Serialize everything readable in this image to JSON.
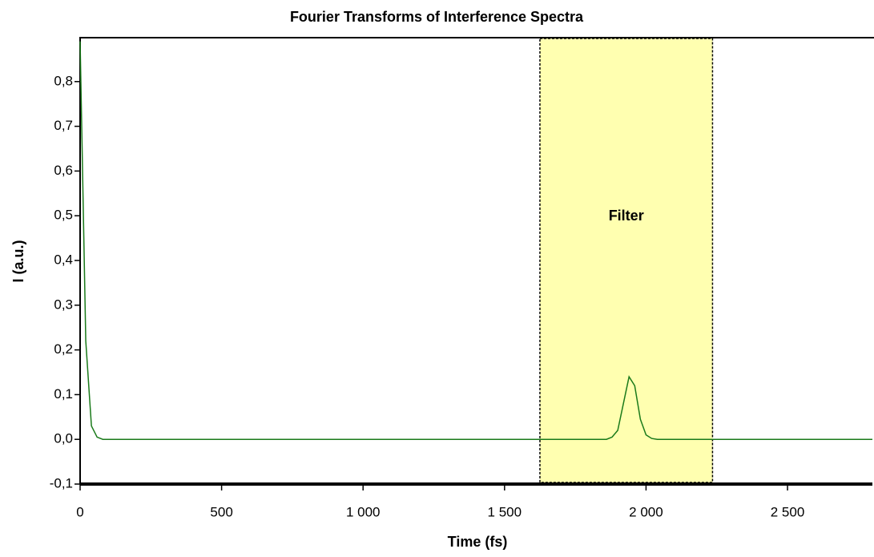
{
  "chart_data": {
    "type": "line",
    "title": "Fourier Transforms of Interference Spectra",
    "xlabel": "Time (fs)",
    "ylabel": "I (a.u.)",
    "xlim": [
      0,
      2800
    ],
    "ylim": [
      -0.1,
      0.9
    ],
    "xticks": [
      0,
      500,
      {
        "value": 1000,
        "label": "1 000"
      },
      {
        "value": 1500,
        "label": "1 500"
      },
      {
        "value": 2000,
        "label": "2 000"
      },
      {
        "value": 2500,
        "label": "2 500"
      }
    ],
    "yticks": [
      {
        "value": -0.1,
        "label": "-0,1"
      },
      {
        "value": 0,
        "label": "0,0"
      },
      {
        "value": 0.1,
        "label": "0,1"
      },
      {
        "value": 0.2,
        "label": "0,2"
      },
      {
        "value": 0.3,
        "label": "0,3"
      },
      {
        "value": 0.4,
        "label": "0,4"
      },
      {
        "value": 0.5,
        "label": "0,5"
      },
      {
        "value": 0.6,
        "label": "0,6"
      },
      {
        "value": 0.7,
        "label": "0,7"
      },
      {
        "value": 0.8,
        "label": "0,8"
      }
    ],
    "grid": false,
    "filter": {
      "label": "Filter",
      "x": [
        1625,
        2235
      ],
      "color": "#ffffb0"
    },
    "x": [
      0,
      20,
      40,
      60,
      80,
      1860,
      1880,
      1900,
      1920,
      1940,
      1960,
      1980,
      2000,
      2020,
      2040,
      2800
    ],
    "series": [
      {
        "color": "#1a7a1a",
        "values": [
          0.89,
          0.22,
          0.03,
          0.005,
          0,
          0,
          0.005,
          0.02,
          0.08,
          0.14,
          0.12,
          0.045,
          0.01,
          0.002,
          0,
          0
        ]
      }
    ]
  }
}
